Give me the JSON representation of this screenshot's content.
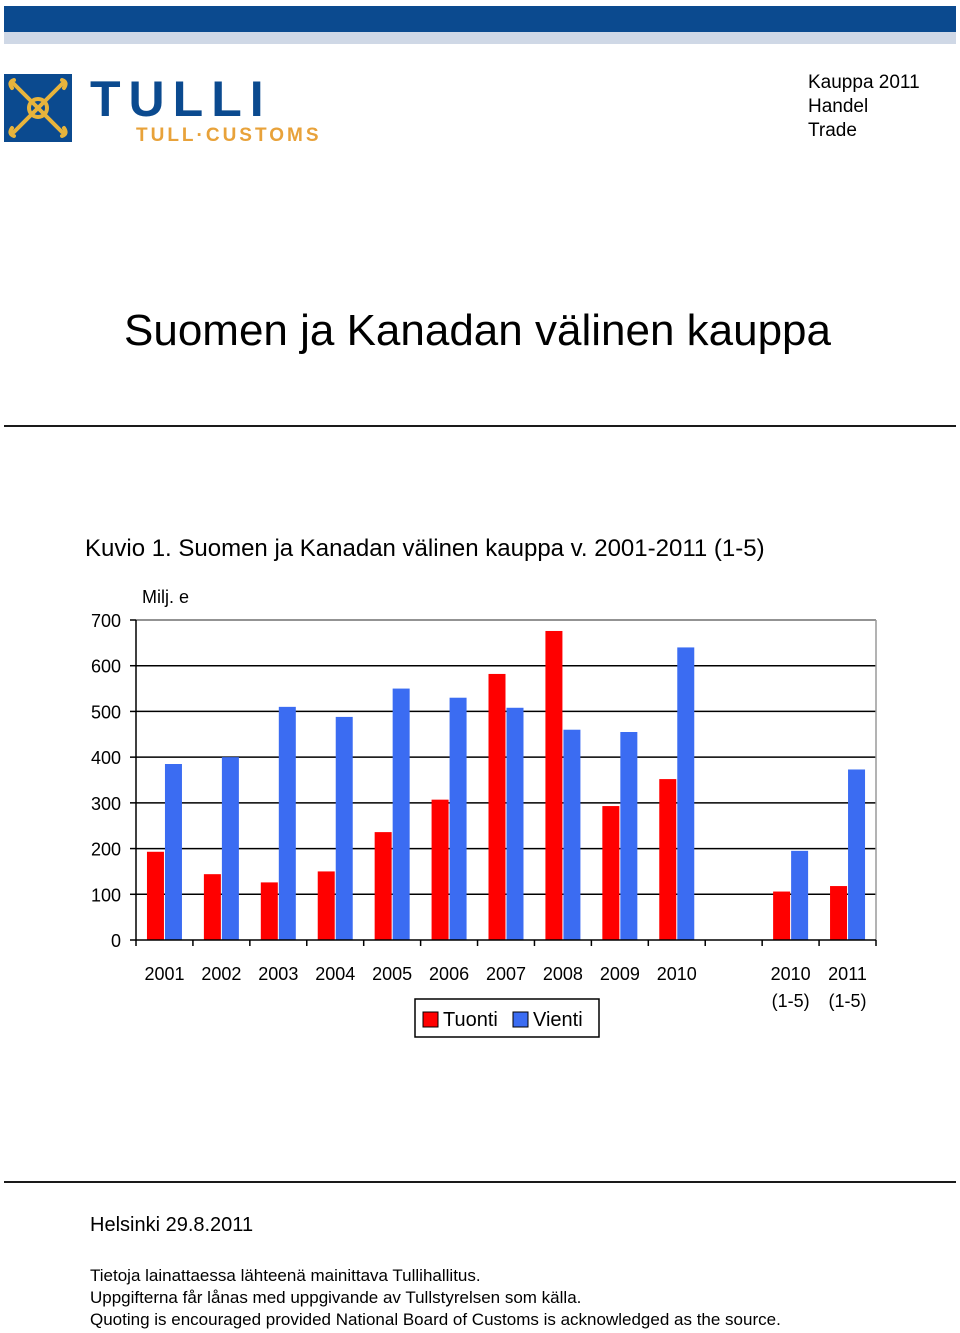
{
  "header": {
    "logo_word": "TULLI",
    "logo_subtitle": "TULL·CUSTOMS",
    "series_lines": [
      "Kauppa 2011",
      "Handel",
      "Trade"
    ]
  },
  "page_title": "Suomen ja Kanadan välinen kauppa",
  "figure_caption": "Kuvio 1. Suomen ja Kanadan välinen kauppa v. 2001-2011 (1-5)",
  "colors": {
    "brand_blue": "#0b4a8f",
    "brand_orange": "#e8a23a",
    "tuonti": "#ff0000",
    "vienti": "#3b6cf2"
  },
  "chart_data": {
    "type": "bar",
    "unit_label": "Milj. e",
    "ylim": [
      0,
      700
    ],
    "yticks": [
      0,
      100,
      200,
      300,
      400,
      500,
      600,
      700
    ],
    "grid": true,
    "legend_position": "bottom-center",
    "categories": [
      {
        "line1": "2001",
        "line2": ""
      },
      {
        "line1": "2002",
        "line2": ""
      },
      {
        "line1": "2003",
        "line2": ""
      },
      {
        "line1": "2004",
        "line2": ""
      },
      {
        "line1": "2005",
        "line2": ""
      },
      {
        "line1": "2006",
        "line2": ""
      },
      {
        "line1": "2007",
        "line2": ""
      },
      {
        "line1": "2008",
        "line2": ""
      },
      {
        "line1": "2009",
        "line2": ""
      },
      {
        "line1": "2010",
        "line2": ""
      },
      {
        "line1": "",
        "line2": ""
      },
      {
        "line1": "2010",
        "line2": "(1-5)"
      },
      {
        "line1": "2011",
        "line2": "(1-5)"
      }
    ],
    "series": [
      {
        "name": "Tuonti",
        "color": "#ff0000",
        "values": [
          193,
          144,
          126,
          150,
          236,
          307,
          582,
          676,
          293,
          352,
          null,
          106,
          118
        ]
      },
      {
        "name": "Vienti",
        "color": "#3b6cf2",
        "values": [
          385,
          400,
          510,
          488,
          550,
          530,
          508,
          460,
          455,
          640,
          null,
          195,
          373
        ]
      }
    ]
  },
  "footer": {
    "date": "Helsinki 29.8.2011",
    "notes": [
      "Tietoja lainattaessa lähteenä mainittava Tullihallitus.",
      "Uppgifterna får lånas med uppgivande av Tullstyrelsen som källa.",
      "Quoting is encouraged provided National Board of Customs is acknowledged as the source."
    ]
  }
}
